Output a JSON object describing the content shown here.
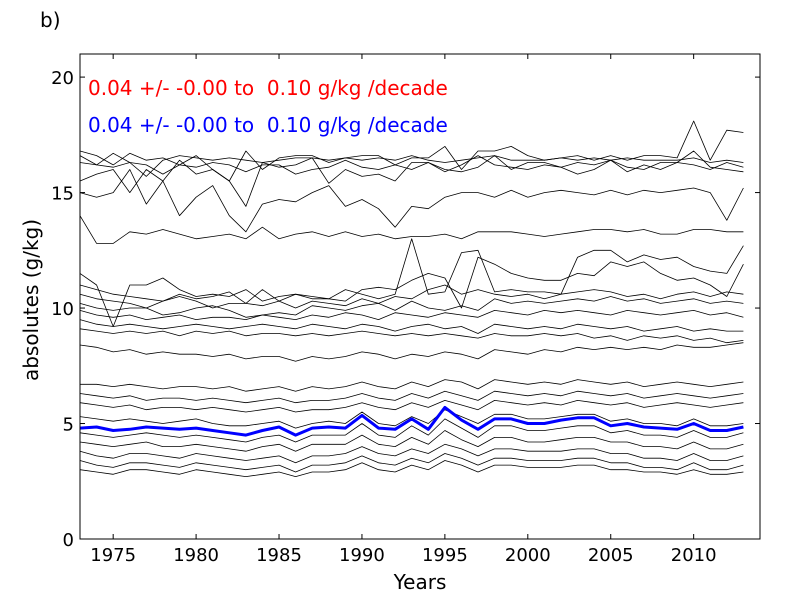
{
  "chart_data": {
    "type": "line",
    "panel_label": "b)",
    "ylabel": "absolutes (g/kg)",
    "xlabel": "Years",
    "xlim": [
      1973,
      2014
    ],
    "ylim": [
      0,
      21
    ],
    "xticks": [
      1975,
      1980,
      1985,
      1990,
      1995,
      2000,
      2005,
      2010
    ],
    "yticks": [
      0,
      5,
      10,
      15,
      20
    ],
    "grid": false,
    "annotations": [
      {
        "text": "0.04 +/- -0.00 to  0.10 g/kg /decade",
        "color": "#ff0000"
      },
      {
        "text": "0.04 +/- -0.00 to  0.10 g/kg /decade",
        "color": "#0000ff"
      }
    ],
    "x": [
      1973,
      1974,
      1975,
      1976,
      1977,
      1978,
      1979,
      1980,
      1981,
      1982,
      1983,
      1984,
      1985,
      1986,
      1987,
      1988,
      1989,
      1990,
      1991,
      1992,
      1993,
      1994,
      1995,
      1996,
      1997,
      1998,
      1999,
      2000,
      2001,
      2002,
      2003,
      2004,
      2005,
      2006,
      2007,
      2008,
      2009,
      2010,
      2011,
      2012,
      2013
    ],
    "series": [
      {
        "color": "#0000ff",
        "values": [
          4.8,
          4.85,
          4.7,
          4.75,
          4.85,
          4.8,
          4.75,
          4.8,
          4.7,
          4.6,
          4.5,
          4.7,
          4.85,
          4.5,
          4.8,
          4.85,
          4.8,
          5.35,
          4.8,
          4.75,
          5.2,
          4.75,
          5.7,
          5.15,
          4.75,
          5.2,
          5.2,
          5.0,
          5.0,
          5.15,
          5.25,
          5.25,
          4.9,
          5.0,
          4.85,
          4.8,
          4.75,
          5.0,
          4.7,
          4.7,
          4.85
        ]
      },
      {
        "color": "#000000",
        "values": [
          16.8,
          16.6,
          16.2,
          16.7,
          16.4,
          16.5,
          16.2,
          16.6,
          16.0,
          15.5,
          16.8,
          16.0,
          16.5,
          16.6,
          16.6,
          16.3,
          16.5,
          16.6,
          16.6,
          16.2,
          16.5,
          16.5,
          17.0,
          16.0,
          16.8,
          16.8,
          17.0,
          16.6,
          16.4,
          16.5,
          16.6,
          16.4,
          16.6,
          16.4,
          16.6,
          16.6,
          16.5,
          18.1,
          16.4,
          17.7,
          17.6
        ]
      },
      {
        "color": "#000000",
        "values": [
          16.6,
          16.2,
          16.7,
          16.3,
          15.7,
          16.4,
          16.6,
          16.5,
          16.4,
          16.5,
          16.4,
          16.3,
          16.4,
          16.5,
          16.5,
          16.4,
          16.5,
          16.4,
          16.5,
          16.4,
          16.6,
          16.4,
          16.3,
          16.4,
          16.5,
          16.6,
          16.4,
          16.4,
          16.4,
          16.5,
          16.4,
          16.5,
          16.4,
          16.5,
          16.4,
          16.4,
          16.4,
          16.5,
          16.3,
          16.4,
          16.3
        ]
      },
      {
        "color": "#000000",
        "values": [
          16.3,
          16.2,
          16.1,
          16.3,
          16.2,
          15.8,
          16.2,
          16.1,
          16.3,
          16.2,
          15.9,
          16.2,
          16.2,
          15.8,
          16.0,
          16.1,
          16.4,
          16.1,
          16.0,
          16.2,
          16.0,
          16.3,
          15.9,
          16.2,
          16.6,
          16.2,
          16.1,
          16.0,
          16.2,
          16.1,
          16.3,
          16.2,
          16.4,
          16.1,
          16.0,
          16.3,
          16.3,
          16.8,
          16.1,
          16.0,
          15.9
        ]
      },
      {
        "color": "#000000",
        "values": [
          15.5,
          15.8,
          16.0,
          15.0,
          16.0,
          15.5,
          16.4,
          15.8,
          16.0,
          15.5,
          14.4,
          16.3,
          16.1,
          16.2,
          16.5,
          15.4,
          16.0,
          15.7,
          15.8,
          15.5,
          16.3,
          16.3,
          16.0,
          15.9,
          16.1,
          16.6,
          16.0,
          16.3,
          16.3,
          16.1,
          15.8,
          16.0,
          16.4,
          15.9,
          16.2,
          16.0,
          16.3,
          16.2,
          16.0,
          16.3,
          16.1
        ]
      },
      {
        "color": "#000000",
        "values": [
          15.0,
          14.8,
          15.0,
          16.0,
          14.5,
          15.5,
          14.0,
          14.8,
          15.3,
          14.0,
          13.3,
          14.5,
          14.7,
          14.6,
          15.0,
          15.3,
          14.4,
          14.7,
          14.3,
          13.5,
          14.4,
          14.3,
          14.8,
          15.0,
          15.0,
          14.8,
          15.1,
          14.8,
          15.0,
          15.1,
          15.0,
          14.9,
          15.1,
          14.9,
          15.1,
          15.0,
          15.1,
          15.2,
          15.0,
          13.8,
          15.2
        ]
      },
      {
        "color": "#000000",
        "values": [
          14.0,
          12.8,
          12.8,
          13.3,
          13.2,
          13.4,
          13.2,
          13.0,
          13.1,
          13.2,
          13.0,
          13.5,
          13.0,
          13.2,
          13.3,
          13.1,
          13.3,
          13.1,
          13.2,
          13.0,
          13.1,
          13.1,
          13.2,
          13.0,
          13.3,
          13.3,
          13.3,
          13.2,
          13.1,
          13.2,
          13.3,
          13.4,
          13.4,
          13.3,
          13.4,
          13.2,
          13.2,
          13.4,
          13.4,
          13.3,
          13.3
        ]
      },
      {
        "color": "#000000",
        "values": [
          11.5,
          11.0,
          9.2,
          11.0,
          11.0,
          11.3,
          10.8,
          10.5,
          10.6,
          10.5,
          10.8,
          10.3,
          10.5,
          10.6,
          10.5,
          10.4,
          10.8,
          10.6,
          10.4,
          10.6,
          13.0,
          10.6,
          10.7,
          12.4,
          12.5,
          10.7,
          10.8,
          10.7,
          10.7,
          10.6,
          12.2,
          12.5,
          12.5,
          12.0,
          12.3,
          12.1,
          12.2,
          11.8,
          11.6,
          11.5,
          12.7
        ]
      },
      {
        "color": "#000000",
        "values": [
          11.0,
          10.8,
          10.6,
          10.5,
          10.4,
          10.3,
          10.6,
          10.4,
          10.5,
          10.7,
          10.2,
          10.8,
          10.3,
          10.6,
          10.4,
          10.4,
          10.3,
          10.8,
          10.9,
          10.8,
          11.2,
          11.5,
          11.3,
          10.0,
          12.2,
          11.9,
          11.5,
          11.3,
          11.2,
          11.2,
          11.5,
          11.4,
          12.0,
          11.8,
          12.0,
          11.5,
          11.2,
          11.3,
          11.0,
          10.5,
          11.9
        ]
      },
      {
        "color": "#000000",
        "values": [
          10.6,
          10.4,
          10.3,
          10.2,
          10.0,
          10.3,
          10.5,
          10.3,
          10.0,
          10.2,
          10.2,
          10.1,
          10.3,
          10.0,
          10.3,
          10.2,
          10.1,
          10.4,
          10.2,
          10.5,
          10.4,
          10.8,
          11.0,
          10.6,
          10.8,
          10.6,
          10.5,
          10.6,
          10.4,
          10.6,
          10.7,
          10.8,
          10.7,
          10.5,
          10.6,
          10.4,
          10.6,
          10.7,
          10.5,
          10.7,
          10.6
        ]
      },
      {
        "color": "#000000",
        "values": [
          10.2,
          10.0,
          9.9,
          10.0,
          10.0,
          9.7,
          9.8,
          10.0,
          10.1,
          9.9,
          9.6,
          9.7,
          9.8,
          9.7,
          10.1,
          10.0,
          9.9,
          10.1,
          10.2,
          9.9,
          10.3,
          10.0,
          9.9,
          10.1,
          9.9,
          10.4,
          10.2,
          10.3,
          10.2,
          10.3,
          10.4,
          10.3,
          10.5,
          10.3,
          10.4,
          10.2,
          10.3,
          10.4,
          10.2,
          10.3,
          10.2
        ]
      },
      {
        "color": "#000000",
        "values": [
          9.9,
          9.7,
          9.6,
          9.7,
          9.5,
          9.6,
          9.7,
          9.5,
          9.6,
          9.6,
          9.5,
          9.7,
          9.6,
          9.5,
          9.7,
          9.6,
          9.8,
          9.7,
          9.5,
          9.8,
          9.7,
          9.6,
          9.8,
          9.7,
          9.6,
          9.9,
          9.8,
          9.7,
          9.9,
          9.8,
          9.9,
          9.8,
          9.7,
          9.9,
          9.8,
          9.7,
          9.8,
          9.9,
          9.7,
          9.8,
          9.6
        ]
      },
      {
        "color": "#000000",
        "values": [
          9.5,
          9.3,
          9.2,
          9.3,
          9.2,
          9.1,
          9.2,
          9.3,
          9.2,
          9.1,
          9.2,
          9.3,
          9.2,
          9.1,
          9.3,
          9.2,
          9.1,
          9.3,
          9.2,
          9.0,
          9.2,
          9.3,
          9.1,
          9.2,
          8.9,
          9.3,
          9.2,
          9.1,
          9.2,
          9.1,
          9.3,
          9.2,
          9.1,
          9.2,
          9.0,
          9.1,
          9.2,
          9.0,
          9.1,
          9.0,
          9.0
        ]
      },
      {
        "color": "#000000",
        "values": [
          9.1,
          9.0,
          8.9,
          9.0,
          8.9,
          9.0,
          8.8,
          9.0,
          8.9,
          9.0,
          8.8,
          8.9,
          8.9,
          8.8,
          8.9,
          8.8,
          8.9,
          9.0,
          8.9,
          8.8,
          8.9,
          8.8,
          8.9,
          8.8,
          8.7,
          8.9,
          8.8,
          8.8,
          8.9,
          8.8,
          8.9,
          8.7,
          8.8,
          8.6,
          8.8,
          8.7,
          8.8,
          8.6,
          8.7,
          8.5,
          8.6
        ]
      },
      {
        "color": "#000000",
        "values": [
          8.4,
          8.3,
          8.1,
          8.2,
          8.0,
          8.1,
          8.0,
          8.0,
          7.9,
          8.0,
          7.8,
          7.9,
          7.9,
          7.7,
          7.9,
          7.8,
          7.9,
          8.1,
          8.0,
          7.8,
          8.0,
          7.9,
          8.1,
          8.0,
          7.8,
          8.2,
          8.1,
          8.0,
          8.2,
          8.1,
          8.3,
          8.2,
          8.3,
          8.2,
          8.3,
          8.2,
          8.4,
          8.3,
          8.3,
          8.4,
          8.5
        ]
      },
      {
        "color": "#000000",
        "values": [
          6.7,
          6.7,
          6.6,
          6.7,
          6.6,
          6.5,
          6.6,
          6.6,
          6.5,
          6.6,
          6.4,
          6.5,
          6.6,
          6.4,
          6.6,
          6.5,
          6.6,
          6.8,
          6.6,
          6.5,
          6.8,
          6.6,
          6.9,
          6.8,
          6.5,
          6.9,
          6.8,
          6.7,
          6.8,
          6.7,
          6.9,
          6.8,
          6.7,
          6.8,
          6.6,
          6.7,
          6.8,
          6.7,
          6.6,
          6.7,
          6.8
        ]
      },
      {
        "color": "#000000",
        "values": [
          6.3,
          6.2,
          6.1,
          6.2,
          6.0,
          6.1,
          6.1,
          6.0,
          6.1,
          6.0,
          5.9,
          6.0,
          6.1,
          5.9,
          6.0,
          6.0,
          6.1,
          6.3,
          6.1,
          6.0,
          6.3,
          6.1,
          6.4,
          6.2,
          6.0,
          6.4,
          6.3,
          6.2,
          6.3,
          6.2,
          6.4,
          6.3,
          6.2,
          6.3,
          6.1,
          6.2,
          6.3,
          6.2,
          6.1,
          6.2,
          6.3
        ]
      },
      {
        "color": "#000000",
        "values": [
          5.9,
          5.8,
          5.7,
          5.8,
          5.6,
          5.7,
          5.7,
          5.6,
          5.7,
          5.6,
          5.5,
          5.6,
          5.7,
          5.5,
          5.6,
          5.6,
          5.7,
          5.9,
          5.7,
          5.6,
          5.9,
          5.7,
          6.0,
          5.8,
          5.6,
          6.0,
          5.9,
          5.8,
          5.9,
          5.8,
          6.0,
          5.9,
          5.8,
          5.9,
          5.7,
          5.8,
          5.9,
          5.8,
          5.7,
          5.8,
          5.9
        ]
      },
      {
        "color": "#000000",
        "values": [
          5.3,
          5.2,
          5.1,
          5.2,
          5.1,
          5.0,
          5.1,
          5.2,
          5.0,
          4.9,
          4.9,
          5.0,
          5.1,
          4.8,
          5.0,
          5.1,
          5.0,
          5.5,
          5.0,
          4.9,
          5.3,
          5.0,
          5.6,
          5.3,
          5.0,
          5.4,
          5.4,
          5.2,
          5.2,
          5.3,
          5.4,
          5.4,
          5.1,
          5.2,
          5.0,
          5.0,
          4.9,
          5.2,
          4.9,
          4.9,
          5.0
        ]
      },
      {
        "color": "#000000",
        "values": [
          4.6,
          4.5,
          4.4,
          4.5,
          4.6,
          4.5,
          4.4,
          4.5,
          4.4,
          4.3,
          4.2,
          4.4,
          4.5,
          4.2,
          4.5,
          4.5,
          4.5,
          5.0,
          4.5,
          4.4,
          4.9,
          4.5,
          5.2,
          4.8,
          4.4,
          4.9,
          4.9,
          4.7,
          4.7,
          4.8,
          4.9,
          4.9,
          4.6,
          4.7,
          4.5,
          4.5,
          4.4,
          4.7,
          4.4,
          4.4,
          4.6
        ]
      },
      {
        "color": "#000000",
        "values": [
          4.2,
          4.1,
          4.0,
          4.1,
          4.2,
          4.0,
          4.0,
          4.1,
          4.0,
          3.9,
          3.8,
          4.0,
          4.1,
          3.8,
          4.1,
          4.1,
          4.1,
          4.5,
          4.1,
          4.0,
          4.4,
          4.1,
          4.7,
          4.3,
          4.0,
          4.4,
          4.4,
          4.2,
          4.2,
          4.3,
          4.4,
          4.4,
          4.2,
          4.2,
          4.0,
          4.0,
          3.9,
          4.2,
          3.9,
          3.9,
          4.1
        ]
      },
      {
        "color": "#000000",
        "values": [
          3.8,
          3.6,
          3.5,
          3.7,
          3.7,
          3.6,
          3.5,
          3.7,
          3.6,
          3.5,
          3.4,
          3.5,
          3.6,
          3.3,
          3.6,
          3.6,
          3.7,
          4.0,
          3.7,
          3.6,
          3.9,
          3.7,
          4.1,
          3.9,
          3.6,
          3.9,
          3.9,
          3.8,
          3.8,
          3.8,
          3.9,
          3.9,
          3.7,
          3.7,
          3.5,
          3.5,
          3.4,
          3.7,
          3.4,
          3.4,
          3.6
        ]
      },
      {
        "color": "#000000",
        "values": [
          3.4,
          3.2,
          3.1,
          3.3,
          3.3,
          3.2,
          3.1,
          3.3,
          3.2,
          3.1,
          3.0,
          3.1,
          3.2,
          2.9,
          3.2,
          3.2,
          3.3,
          3.6,
          3.3,
          3.2,
          3.5,
          3.3,
          3.7,
          3.5,
          3.2,
          3.5,
          3.5,
          3.4,
          3.4,
          3.4,
          3.5,
          3.5,
          3.3,
          3.3,
          3.1,
          3.1,
          3.0,
          3.3,
          3.0,
          3.0,
          3.2
        ]
      },
      {
        "color": "#000000",
        "values": [
          3.0,
          2.9,
          2.8,
          3.0,
          3.0,
          2.9,
          2.8,
          3.0,
          2.9,
          2.8,
          2.7,
          2.8,
          2.9,
          2.7,
          2.9,
          2.9,
          3.0,
          3.3,
          3.0,
          2.9,
          3.2,
          3.0,
          3.4,
          3.2,
          2.9,
          3.2,
          3.2,
          3.1,
          3.1,
          3.1,
          3.2,
          3.2,
          3.0,
          3.0,
          2.9,
          2.9,
          2.8,
          3.0,
          2.8,
          2.8,
          2.9
        ]
      }
    ]
  }
}
